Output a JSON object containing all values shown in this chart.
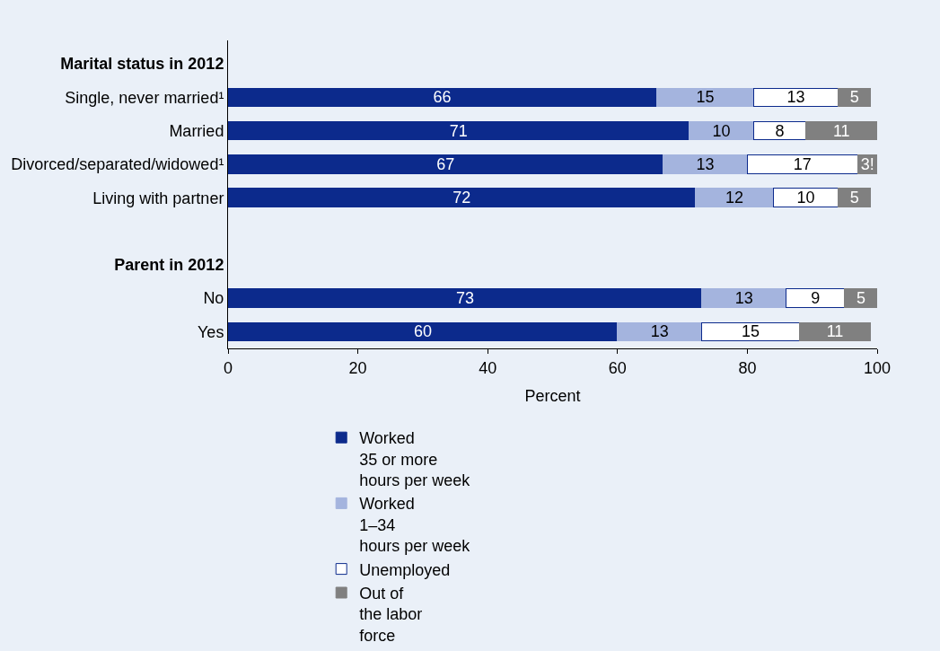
{
  "chart_data": {
    "type": "bar",
    "orientation": "horizontal",
    "stacked": true,
    "xlabel": "Percent",
    "categories": [
      "Marital status in 2012",
      "Single, never married¹",
      "Married",
      "Divorced/separated/widowed¹",
      "Living with partner",
      null,
      "Parent in 2012",
      "No",
      "Yes"
    ],
    "series": [
      {
        "name": "Worked\n35 or more\nhours per week",
        "color": "#0c2a8c",
        "values": [
          null,
          66,
          71,
          67,
          72,
          null,
          null,
          73,
          60
        ]
      },
      {
        "name": "Worked\n1–34\nhours per week",
        "color": "#a4b4de",
        "values": [
          null,
          15,
          10,
          13,
          12,
          null,
          null,
          13,
          13
        ]
      },
      {
        "name": "Unemployed",
        "color": "#ffffff",
        "values": [
          null,
          13,
          8,
          17,
          10,
          null,
          null,
          9,
          15
        ]
      },
      {
        "name": "Out of\nthe labor\nforce",
        "color": "#808080",
        "values": [
          null,
          5,
          11,
          3,
          5,
          null,
          null,
          5,
          11
        ],
        "value_labels": [
          null,
          "5",
          "11",
          "3!",
          "5",
          null,
          null,
          "5",
          "11"
        ]
      }
    ],
    "xlim": [
      0,
      100
    ],
    "xticks": [
      0,
      20,
      40,
      60,
      80,
      100
    ],
    "data_labels": true,
    "legend": "bottom",
    "grid": false
  }
}
